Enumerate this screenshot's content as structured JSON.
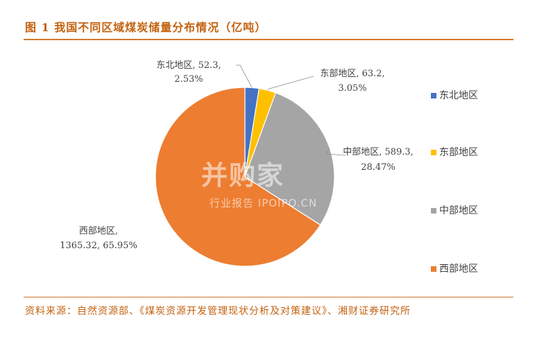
{
  "figure": {
    "title": "图 1 我国不同区域煤炭储量分布情况（亿吨）",
    "source": "资料来源：自然资源部、《煤炭资源开发管理现状分析及对策建议》、湘财证券研究所"
  },
  "watermark": {
    "logo": "并购家",
    "sub": "行业报告 IPOIPO.CN"
  },
  "chart_data": {
    "type": "pie",
    "categories": [
      "东北地区",
      "东部地区",
      "中部地区",
      "西部地区"
    ],
    "values": [
      52.3,
      63.2,
      589.3,
      1365.32
    ],
    "percents": [
      "2.53%",
      "3.05%",
      "28.47%",
      "65.95%"
    ],
    "colors": [
      "#4472c4",
      "#ffc000",
      "#a5a5a5",
      "#ed7d31"
    ],
    "data_labels": [
      [
        "东北地区, 52.3,",
        "2.53%"
      ],
      [
        "东部地区, 63.2,",
        "3.05%"
      ],
      [
        "中部地区, 589.3,",
        "28.47%"
      ],
      [
        "西部地区,",
        "1365.32, 65.95%"
      ]
    ],
    "legend": [
      "东北地区",
      "东部地区",
      "中部地区",
      "西部地区"
    ],
    "legend_position": "right",
    "start_angle": "12 o'clock",
    "direction": "clockwise"
  }
}
